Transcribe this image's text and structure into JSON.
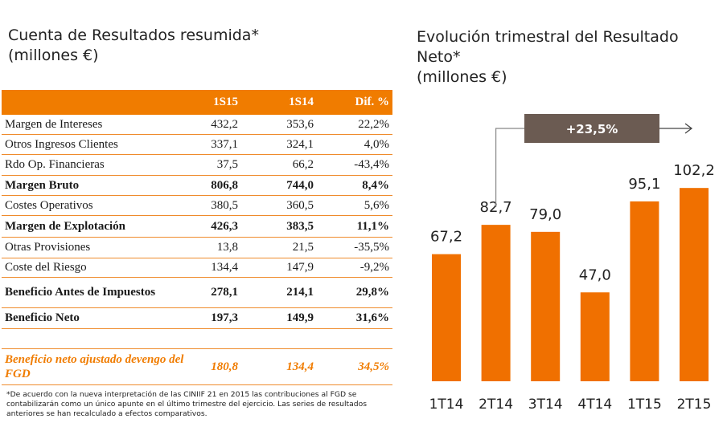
{
  "left_title": {
    "line1": "Cuenta de Resultados resumida*",
    "line2": "(millones €)"
  },
  "right_title": {
    "line1": "Evolución trimestral del Resultado Neto*",
    "line2": "(millones €)"
  },
  "table": {
    "headers": [
      "",
      "1S15",
      "1S14",
      "Dif. %"
    ],
    "rows": [
      {
        "label": "Margen de Intereses",
        "v1": "432,2",
        "v2": "353,6",
        "diff": "22,2%",
        "bold": false
      },
      {
        "label": "Otros Ingresos Clientes",
        "v1": "337,1",
        "v2": "324,1",
        "diff": "4,0%",
        "bold": false
      },
      {
        "label": "Rdo Op. Financieras",
        "v1": "37,5",
        "v2": "66,2",
        "diff": "-43,4%",
        "bold": false
      },
      {
        "label": "Margen Bruto",
        "v1": "806,8",
        "v2": "744,0",
        "diff": "8,4%",
        "bold": true
      },
      {
        "label": "Costes Operativos",
        "v1": "380,5",
        "v2": "360,5",
        "diff": "5,6%",
        "bold": false
      },
      {
        "label": "Margen de Explotación",
        "v1": "426,3",
        "v2": "383,5",
        "diff": "11,1%",
        "bold": true
      },
      {
        "label": "Otras Provisiones",
        "v1": "13,8",
        "v2": "21,5",
        "diff": "-35,5%",
        "bold": false
      },
      {
        "label": "Coste del Riesgo",
        "v1": "134,4",
        "v2": "147,9",
        "diff": "-9,2%",
        "bold": false
      },
      {
        "label": "Beneficio Antes de Impuestos",
        "v1": "278,1",
        "v2": "214,1",
        "diff": "29,8%",
        "bold": true
      },
      {
        "label": "Beneficio Neto",
        "v1": "197,3",
        "v2": "149,9",
        "diff": "31,6%",
        "bold": true
      }
    ],
    "adjusted": {
      "label": "Beneficio neto ajustado devengo del FGD",
      "v1": "180,8",
      "v2": "134,4",
      "diff": "34,5%"
    }
  },
  "footnote": "*De acuerdo con la nueva interpretación de las CINIIF 21 en 2015 las contribuciones al FGD se contabilizarán como un único apunte en el último trimestre del ejercicio. Las series de resultados anteriores se han recalculado a efectos comparativos.",
  "colors": {
    "bar": "#f07000",
    "header": "#f07c00",
    "growth_box": "#6b5b52"
  },
  "chart_data": {
    "type": "bar",
    "title": "Evolución trimestral del Resultado Neto* (millones €)",
    "categories": [
      "1T14",
      "2T14",
      "3T14",
      "4T14",
      "1T15",
      "2T15"
    ],
    "values": [
      67.2,
      82.7,
      79.0,
      47.0,
      95.1,
      102.2
    ],
    "value_labels": [
      "67,2",
      "82,7",
      "79,0",
      "47,0",
      "95,1",
      "102,2"
    ],
    "ylim": [
      0,
      110
    ],
    "annotation": "+23,5%"
  }
}
